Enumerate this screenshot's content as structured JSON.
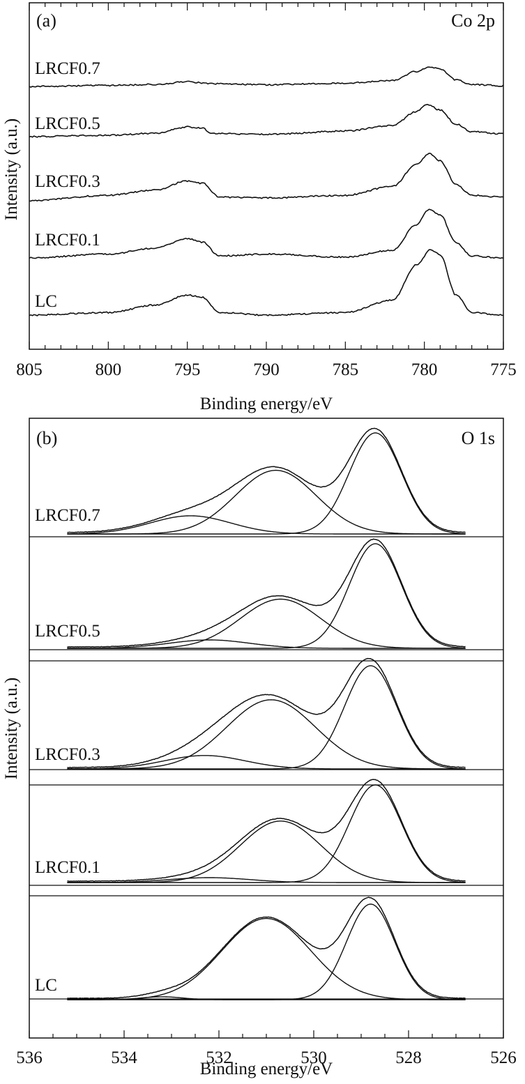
{
  "figure": {
    "panel_a": {
      "panel_label": "(a)",
      "element_label": "Co 2p",
      "xlabel": "Binding energy/eV",
      "ylabel": "Intensity (a.u.)",
      "sample_labels": [
        "LRCF0.7",
        "LRCF0.5",
        "LRCF0.3",
        "LRCF0.1",
        "LC"
      ]
    },
    "panel_b": {
      "panel_label": "(b)",
      "element_label": "O 1s",
      "xlabel": "Binding energy/eV",
      "ylabel": "Intensity (a.u.)",
      "sample_labels": [
        "LRCF0.7",
        "LRCF0.5",
        "LRCF0.3",
        "LRCF0.1",
        "LC"
      ]
    }
  },
  "chart_data": [
    {
      "type": "line",
      "panel": "(a)",
      "annotation": "Co 2p",
      "xlabel": "Binding energy/eV",
      "ylabel": "Intensity (a.u.)",
      "xlim": [
        805,
        775
      ],
      "x_reversed": true,
      "x_ticks": [
        805,
        800,
        795,
        790,
        785,
        780,
        775
      ],
      "y_ticks_labeled": false,
      "grid": false,
      "legend": "none",
      "series": [
        {
          "name": "LRCF0.7",
          "peaks_eV": [
            794.8,
            779.6
          ],
          "points": [
            [
              805,
              0.0
            ],
            [
              800,
              0.03
            ],
            [
              797,
              0.06
            ],
            [
              795,
              0.14
            ],
            [
              793.5,
              0.08
            ],
            [
              790,
              0.05
            ],
            [
              785,
              0.1
            ],
            [
              782,
              0.18
            ],
            [
              780.5,
              0.45
            ],
            [
              779.6,
              0.58
            ],
            [
              779,
              0.52
            ],
            [
              778,
              0.2
            ],
            [
              777,
              0.06
            ],
            [
              775,
              0.02
            ]
          ]
        },
        {
          "name": "LRCF0.5",
          "peaks_eV": [
            794.9,
            779.8
          ],
          "points": [
            [
              805,
              0.0
            ],
            [
              800,
              0.05
            ],
            [
              797,
              0.12
            ],
            [
              795,
              0.35
            ],
            [
              794,
              0.3
            ],
            [
              793.5,
              0.12
            ],
            [
              790,
              0.08
            ],
            [
              785,
              0.2
            ],
            [
              782,
              0.4
            ],
            [
              780.5,
              0.9
            ],
            [
              779.8,
              1.15
            ],
            [
              779,
              0.95
            ],
            [
              778,
              0.45
            ],
            [
              777,
              0.18
            ],
            [
              775,
              0.1
            ]
          ]
        },
        {
          "name": "LRCF0.3",
          "peaks_eV": [
            794.8,
            779.8
          ],
          "points": [
            [
              805,
              0.0
            ],
            [
              800,
              0.15
            ],
            [
              797,
              0.3
            ],
            [
              795,
              0.55
            ],
            [
              794,
              0.48
            ],
            [
              793,
              0.1
            ],
            [
              790,
              0.08
            ],
            [
              785,
              0.15
            ],
            [
              782,
              0.4
            ],
            [
              780.5,
              1.0
            ],
            [
              779.7,
              1.3
            ],
            [
              779,
              1.1
            ],
            [
              778,
              0.45
            ],
            [
              777,
              0.15
            ],
            [
              775,
              0.1
            ]
          ]
        },
        {
          "name": "LRCF0.1",
          "peaks_eV": [
            794.8,
            779.8
          ],
          "points": [
            [
              805,
              0.0
            ],
            [
              800,
              0.1
            ],
            [
              797,
              0.25
            ],
            [
              795,
              0.5
            ],
            [
              794,
              0.4
            ],
            [
              793,
              0.05
            ],
            [
              790,
              0.1
            ],
            [
              785,
              0.02
            ],
            [
              782,
              0.2
            ],
            [
              780.5,
              0.85
            ],
            [
              779.7,
              1.25
            ],
            [
              779,
              1.1
            ],
            [
              778,
              0.4
            ],
            [
              777,
              0.05
            ],
            [
              775,
              0.0
            ]
          ]
        },
        {
          "name": "LC",
          "peaks_eV": [
            794.7,
            779.6
          ],
          "points": [
            [
              805,
              0.0
            ],
            [
              800,
              0.05
            ],
            [
              797,
              0.2
            ],
            [
              795,
              0.4
            ],
            [
              794,
              0.35
            ],
            [
              793,
              0.05
            ],
            [
              790,
              0.0
            ],
            [
              785,
              0.05
            ],
            [
              782,
              0.3
            ],
            [
              780.5,
              1.0
            ],
            [
              779.6,
              1.3
            ],
            [
              779,
              1.2
            ],
            [
              778,
              0.4
            ],
            [
              777,
              0.05
            ],
            [
              775,
              0.0
            ]
          ]
        }
      ]
    },
    {
      "type": "line",
      "panel": "(b)",
      "annotation": "O 1s",
      "xlabel": "Binding energy/eV",
      "ylabel": "Intensity (a.u.)",
      "xlim": [
        536,
        526
      ],
      "x_reversed": true,
      "x_ticks": [
        536,
        534,
        532,
        530,
        528,
        526
      ],
      "y_ticks_labeled": false,
      "grid": false,
      "legend": "none",
      "subplots": [
        {
          "name": "LRCF0.7",
          "components": [
            {
              "center": 528.7,
              "height": 1.0,
              "fwhm": 1.3
            },
            {
              "center": 530.8,
              "height": 0.63,
              "fwhm": 2.0
            },
            {
              "center": 532.6,
              "height": 0.18,
              "fwhm": 2.0
            }
          ]
        },
        {
          "name": "LRCF0.5",
          "components": [
            {
              "center": 528.7,
              "height": 1.0,
              "fwhm": 1.3
            },
            {
              "center": 530.7,
              "height": 0.47,
              "fwhm": 2.0
            },
            {
              "center": 532.2,
              "height": 0.08,
              "fwhm": 2.0
            }
          ]
        },
        {
          "name": "LRCF0.3",
          "components": [
            {
              "center": 528.8,
              "height": 1.0,
              "fwhm": 1.3
            },
            {
              "center": 530.9,
              "height": 0.67,
              "fwhm": 2.2
            },
            {
              "center": 532.3,
              "height": 0.13,
              "fwhm": 2.0
            }
          ]
        },
        {
          "name": "LRCF0.1",
          "components": [
            {
              "center": 528.7,
              "height": 1.0,
              "fwhm": 1.3
            },
            {
              "center": 530.7,
              "height": 0.63,
              "fwhm": 2.0
            },
            {
              "center": 532.2,
              "height": 0.05,
              "fwhm": 2.0
            }
          ]
        },
        {
          "name": "LC",
          "components": [
            {
              "center": 528.8,
              "height": 1.0,
              "fwhm": 1.2
            },
            {
              "center": 531.0,
              "height": 0.85,
              "fwhm": 2.2
            },
            {
              "center": 533.2,
              "height": 0.03,
              "fwhm": 1.0
            }
          ]
        }
      ]
    }
  ]
}
